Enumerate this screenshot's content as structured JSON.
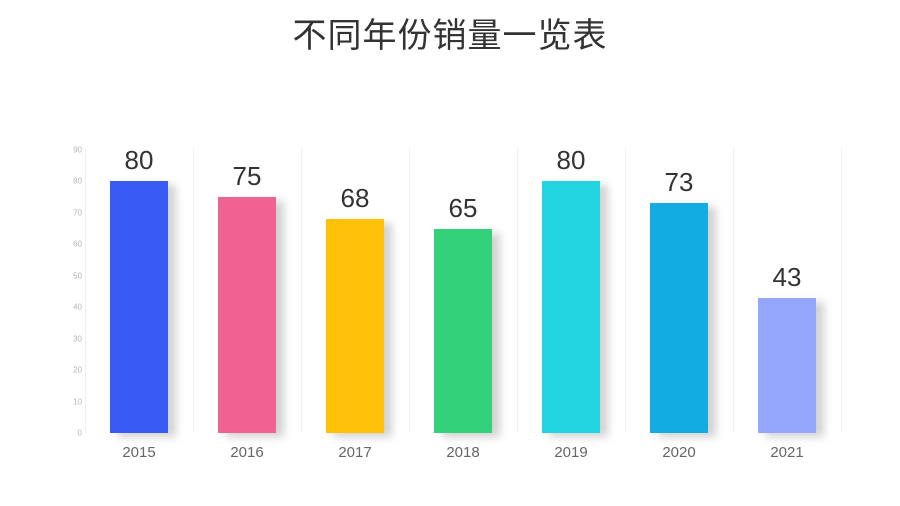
{
  "title": "不同年份销量一览表",
  "chart_data": {
    "type": "bar",
    "title": "不同年份销量一览表",
    "categories": [
      "2015",
      "2016",
      "2017",
      "2018",
      "2019",
      "2020",
      "2021"
    ],
    "values": [
      80,
      75,
      68,
      65,
      80,
      73,
      43
    ],
    "colors": [
      "#3a5af5",
      "#f06292",
      "#ffc107",
      "#33d17a",
      "#22d3e0",
      "#12ace3",
      "#94a6fb"
    ],
    "xlabel": "",
    "ylabel": "",
    "ylim": [
      0,
      90
    ],
    "yticks": [
      0,
      10,
      20,
      30,
      40,
      50,
      60,
      70,
      80,
      90
    ],
    "grid": "vertical",
    "data_labels": true,
    "legend": "none"
  }
}
